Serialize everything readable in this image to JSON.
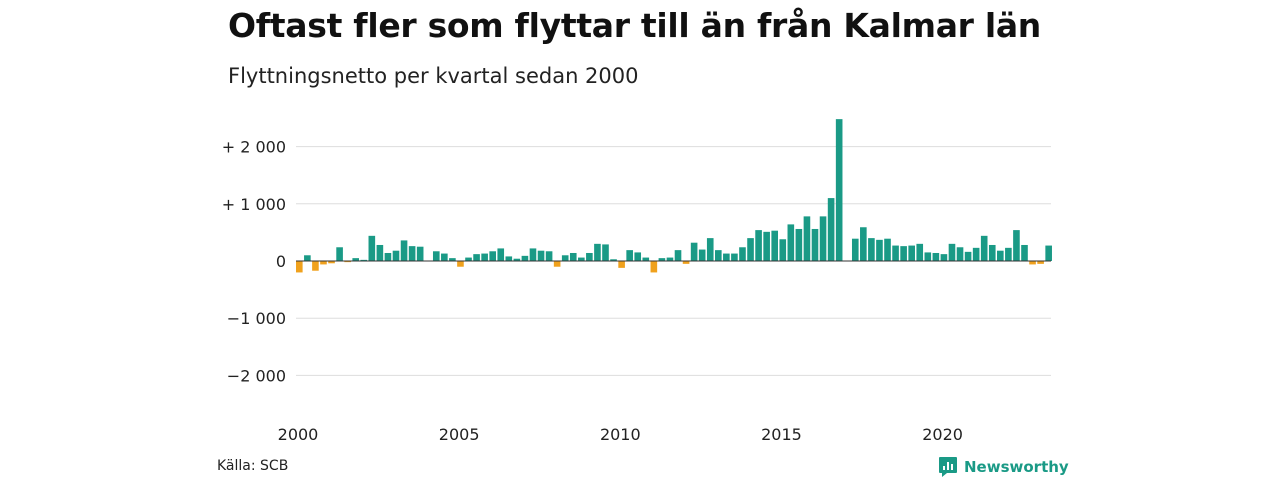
{
  "header": {
    "title": "Oftast fler som flyttar till än från Kalmar län",
    "subtitle": "Flyttningsnetto per kvartal sedan 2000"
  },
  "footer": {
    "source": "Källa: SCB",
    "brand": "Newsworthy"
  },
  "colors": {
    "positive": "#1a9a86",
    "negative": "#f0a11d",
    "grid": "#dddddd",
    "brand": "#1a9a86"
  },
  "chart_data": {
    "type": "bar",
    "ylim": [
      -2200,
      2500
    ],
    "xlim": [
      2000,
      2023.75
    ],
    "y_ticks": [
      2000,
      1000,
      0,
      -1000,
      -2000
    ],
    "y_tick_labels": [
      "+ 2 000",
      "+ 1 000",
      "0",
      "−1 000",
      "−2 000"
    ],
    "x_ticks": [
      2000,
      2005,
      2010,
      2015,
      2020
    ],
    "x_tick_labels": [
      "2000",
      "2005",
      "2010",
      "2015",
      "2020"
    ],
    "grid": true,
    "start_year": 2000,
    "values": [
      -200,
      100,
      -170,
      -60,
      -40,
      240,
      -20,
      50,
      20,
      440,
      280,
      140,
      180,
      360,
      260,
      250,
      0,
      170,
      130,
      50,
      -100,
      60,
      120,
      130,
      170,
      220,
      80,
      40,
      90,
      220,
      180,
      170,
      -100,
      100,
      140,
      60,
      140,
      300,
      290,
      30,
      -120,
      190,
      150,
      60,
      -200,
      50,
      60,
      190,
      -50,
      320,
      200,
      400,
      190,
      130,
      130,
      240,
      400,
      540,
      510,
      530,
      380,
      640,
      560,
      780,
      560,
      780,
      1100,
      2480,
      0,
      390,
      590,
      400,
      370,
      390,
      270,
      260,
      270,
      300,
      150,
      140,
      120,
      300,
      240,
      160,
      230,
      440,
      280,
      180,
      230,
      540,
      280,
      -60,
      -50,
      270
    ]
  }
}
